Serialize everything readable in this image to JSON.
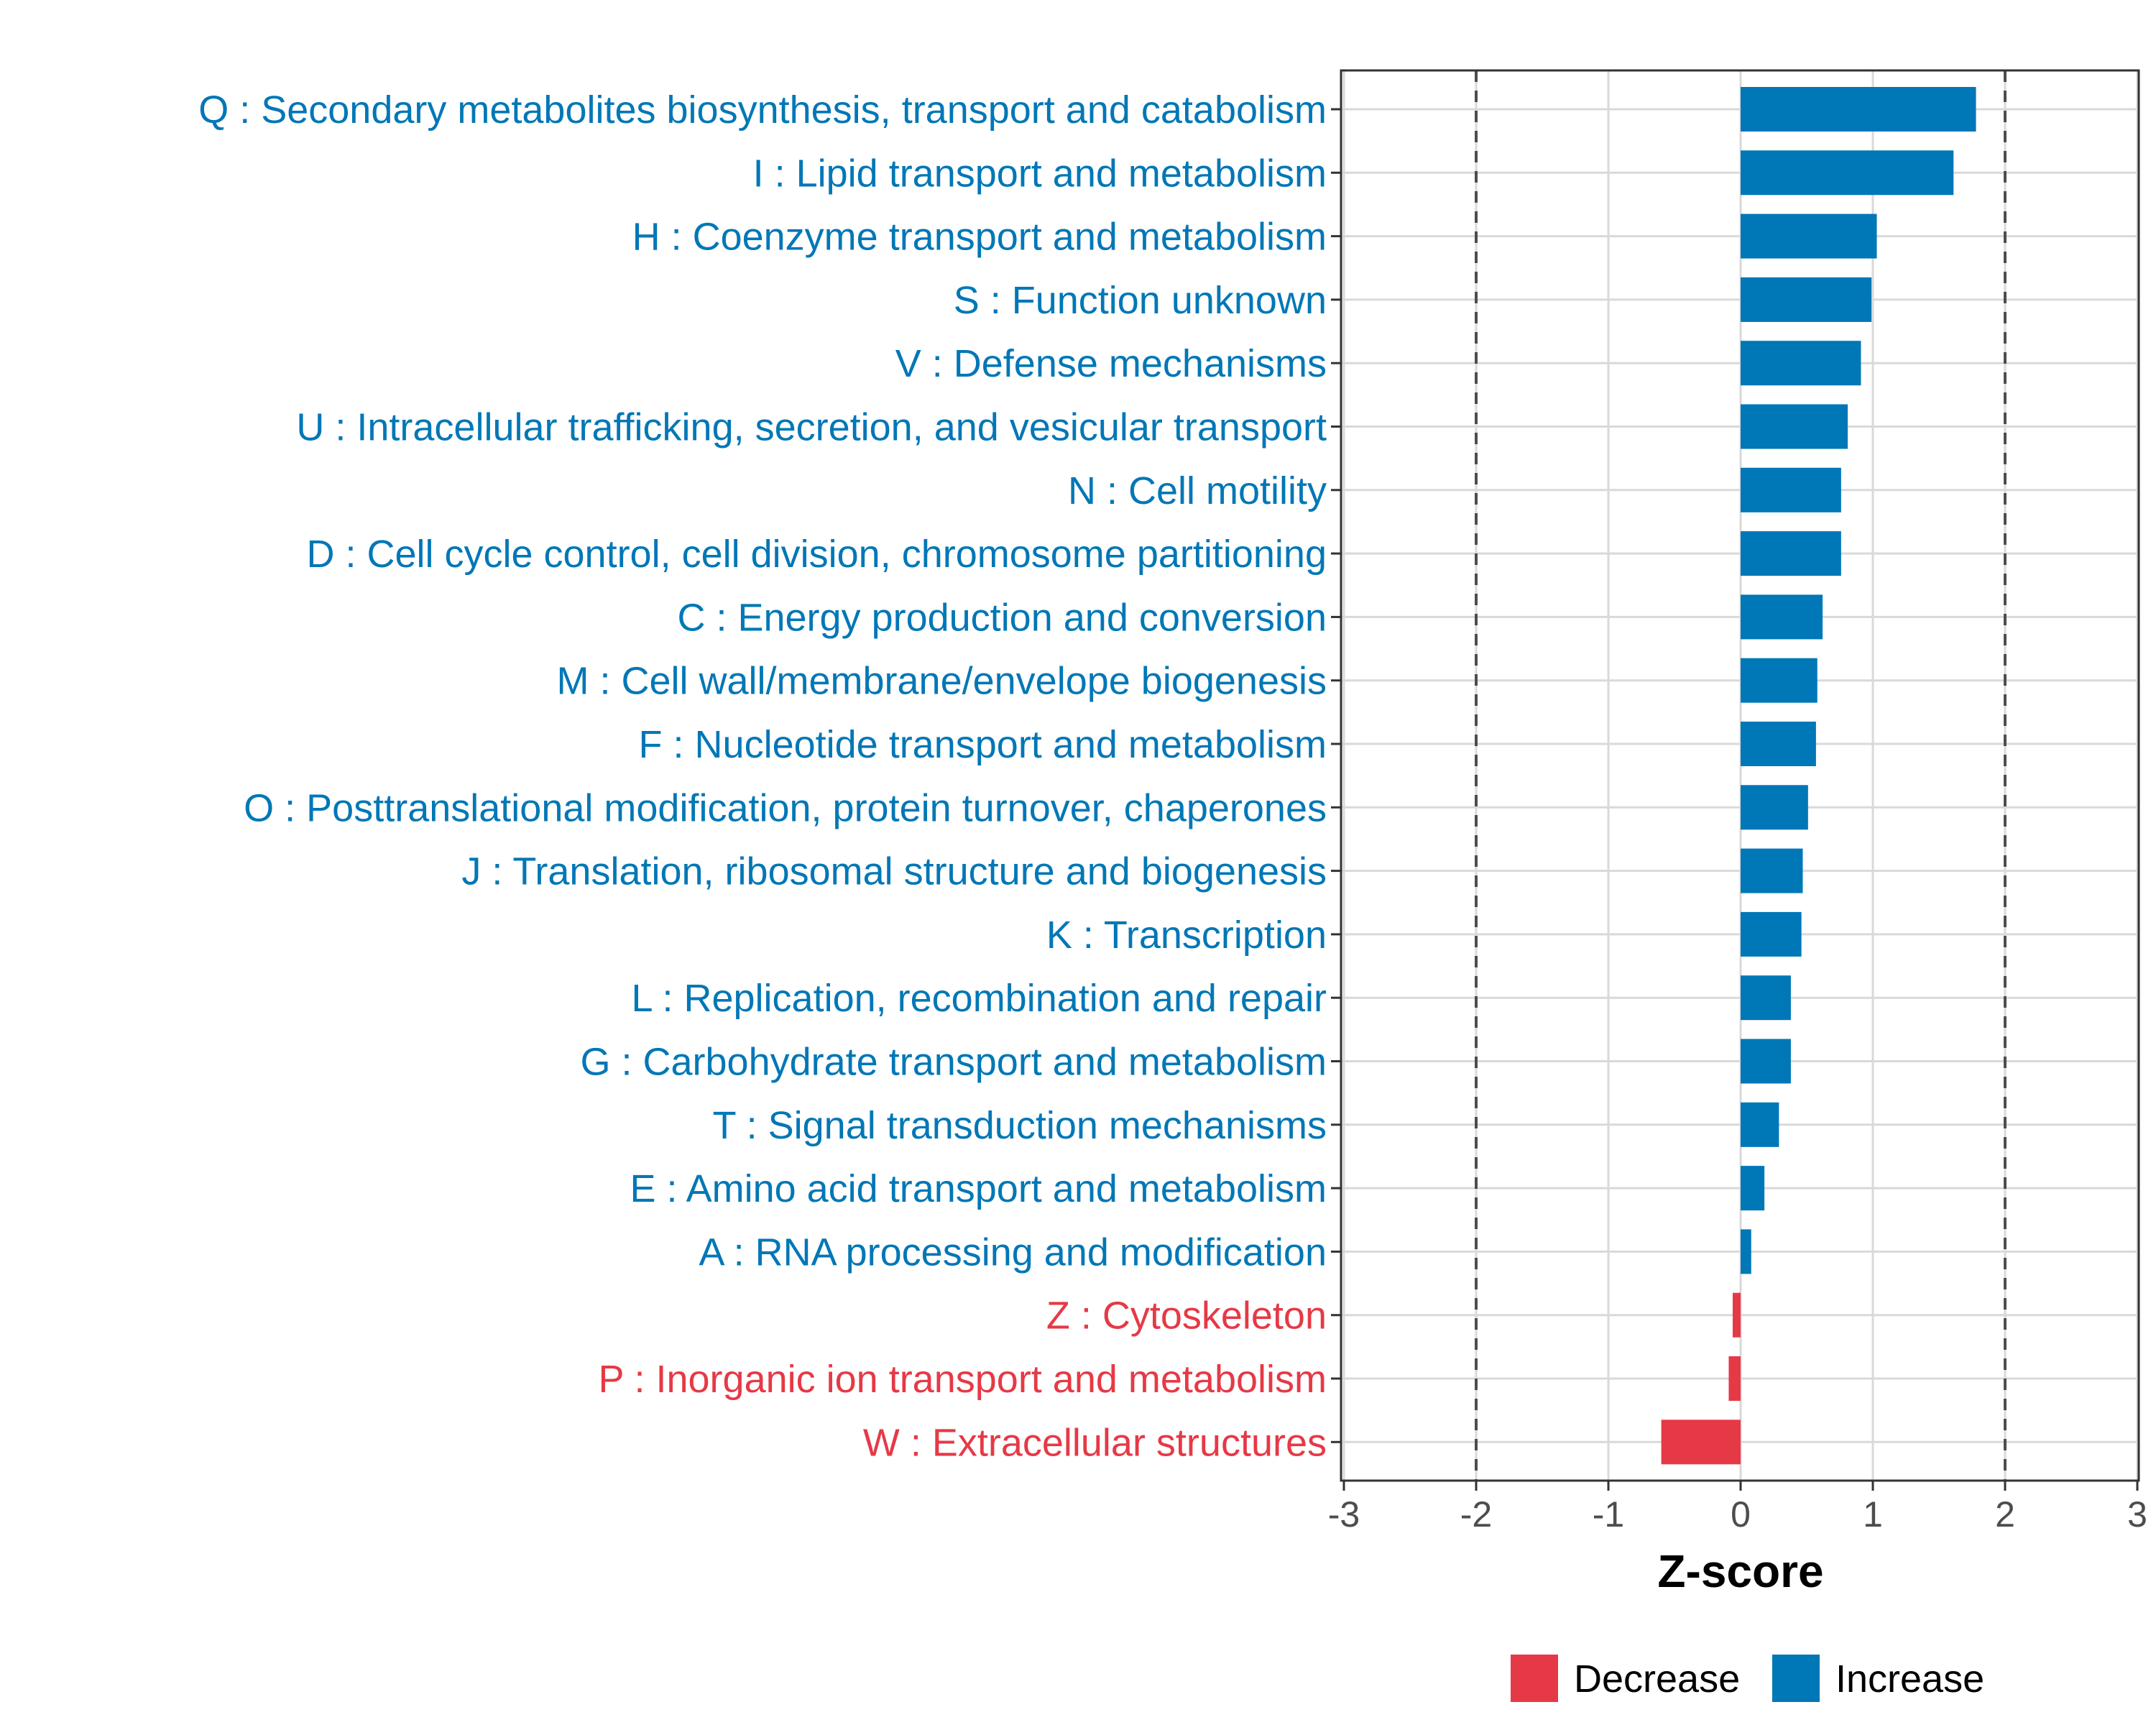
{
  "chart_data": {
    "type": "bar",
    "orientation": "horizontal",
    "title": "",
    "xlabel": "Z-score",
    "ylabel": "",
    "xlim": [
      -3,
      3
    ],
    "xticks": [
      -3,
      -2,
      -1,
      0,
      1,
      2,
      3
    ],
    "reference_lines": [
      -2,
      2
    ],
    "grid": true,
    "legend_position": "bottom",
    "legend": [
      {
        "key": "decrease",
        "label": "Decrease",
        "color": "#E63946"
      },
      {
        "key": "increase",
        "label": "Increase",
        "color": "#0077B6"
      }
    ],
    "categories": [
      "Q : Secondary metabolites biosynthesis, transport and catabolism",
      "I : Lipid transport and metabolism",
      "H : Coenzyme transport and metabolism",
      "S : Function unknown",
      "V : Defense mechanisms",
      "U : Intracellular trafficking, secretion, and vesicular transport",
      "N : Cell motility",
      "D : Cell cycle control, cell division, chromosome partitioning",
      "C : Energy production and conversion",
      "M : Cell wall/membrane/envelope biogenesis",
      "F : Nucleotide transport and metabolism",
      "O : Posttranslational modification, protein turnover, chaperones",
      "J : Translation, ribosomal structure and biogenesis",
      "K : Transcription",
      "L : Replication, recombination and repair",
      "G : Carbohydrate transport and metabolism",
      "T : Signal transduction mechanisms",
      "E : Amino acid transport and metabolism",
      "A : RNA processing and modification",
      "Z : Cytoskeleton",
      "P : Inorganic ion transport and metabolism",
      "W : Extracellular structures"
    ],
    "values": [
      1.78,
      1.61,
      1.03,
      0.99,
      0.91,
      0.81,
      0.76,
      0.76,
      0.62,
      0.58,
      0.57,
      0.51,
      0.47,
      0.46,
      0.38,
      0.38,
      0.29,
      0.18,
      0.08,
      -0.06,
      -0.09,
      -0.6
    ]
  }
}
